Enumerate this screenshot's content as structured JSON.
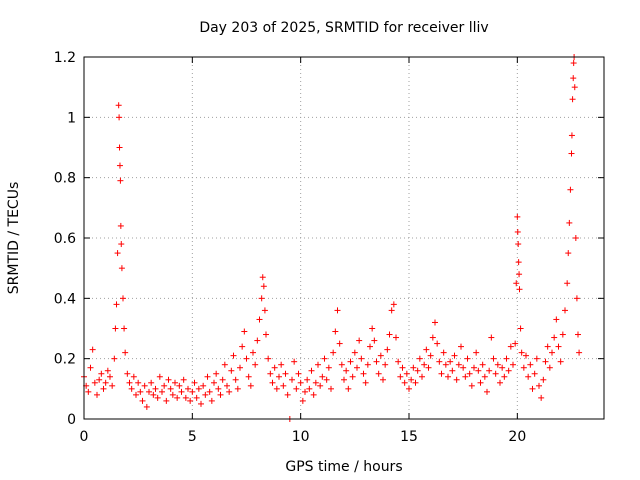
{
  "chart_data": {
    "type": "scatter",
    "title": "Day 203 of 2025, SRMTID for receiver lliv",
    "xlabel": "GPS time / hours",
    "ylabel": "SRMTID / TECUs",
    "xlim": [
      0,
      24
    ],
    "ylim": [
      0,
      1.2
    ],
    "xticks": [
      0,
      5,
      10,
      15,
      20
    ],
    "xtick_labels": [
      "0",
      "5",
      "10",
      "15",
      "20"
    ],
    "yticks": [
      0,
      0.2,
      0.4,
      0.6,
      0.8,
      1.0,
      1.2
    ],
    "ytick_labels": [
      "0",
      "0.2",
      "0.4",
      "0.6",
      "0.8",
      "1",
      "1.2"
    ],
    "grid": true,
    "marker": "plus",
    "color": "#ff0000",
    "series": [
      {
        "name": "SRMTID",
        "points": [
          [
            0.0,
            0.14
          ],
          [
            0.1,
            0.11
          ],
          [
            0.2,
            0.09
          ],
          [
            0.3,
            0.17
          ],
          [
            0.4,
            0.23
          ],
          [
            0.5,
            0.12
          ],
          [
            0.6,
            0.08
          ],
          [
            0.7,
            0.13
          ],
          [
            0.8,
            0.15
          ],
          [
            0.9,
            0.1
          ],
          [
            1.0,
            0.12
          ],
          [
            1.1,
            0.16
          ],
          [
            1.2,
            0.14
          ],
          [
            1.3,
            0.11
          ],
          [
            1.4,
            0.2
          ],
          [
            1.45,
            0.3
          ],
          [
            1.5,
            0.38
          ],
          [
            1.55,
            0.55
          ],
          [
            1.6,
            1.04
          ],
          [
            1.62,
            1.0
          ],
          [
            1.64,
            0.9
          ],
          [
            1.66,
            0.84
          ],
          [
            1.68,
            0.79
          ],
          [
            1.7,
            0.64
          ],
          [
            1.72,
            0.58
          ],
          [
            1.75,
            0.5
          ],
          [
            1.8,
            0.4
          ],
          [
            1.85,
            0.3
          ],
          [
            1.9,
            0.22
          ],
          [
            2.0,
            0.15
          ],
          [
            2.1,
            0.12
          ],
          [
            2.2,
            0.1
          ],
          [
            2.3,
            0.14
          ],
          [
            2.4,
            0.08
          ],
          [
            2.5,
            0.12
          ],
          [
            2.6,
            0.09
          ],
          [
            2.7,
            0.06
          ],
          [
            2.8,
            0.11
          ],
          [
            2.9,
            0.04
          ],
          [
            3.0,
            0.09
          ],
          [
            3.1,
            0.12
          ],
          [
            3.2,
            0.08
          ],
          [
            3.3,
            0.1
          ],
          [
            3.4,
            0.07
          ],
          [
            3.5,
            0.14
          ],
          [
            3.6,
            0.09
          ],
          [
            3.7,
            0.11
          ],
          [
            3.8,
            0.06
          ],
          [
            3.9,
            0.13
          ],
          [
            4.0,
            0.1
          ],
          [
            4.1,
            0.08
          ],
          [
            4.2,
            0.12
          ],
          [
            4.3,
            0.07
          ],
          [
            4.4,
            0.11
          ],
          [
            4.5,
            0.09
          ],
          [
            4.6,
            0.13
          ],
          [
            4.7,
            0.07
          ],
          [
            4.8,
            0.1
          ],
          [
            4.9,
            0.06
          ],
          [
            5.0,
            0.09
          ],
          [
            5.1,
            0.12
          ],
          [
            5.2,
            0.07
          ],
          [
            5.3,
            0.1
          ],
          [
            5.4,
            0.05
          ],
          [
            5.5,
            0.11
          ],
          [
            5.6,
            0.08
          ],
          [
            5.7,
            0.14
          ],
          [
            5.8,
            0.09
          ],
          [
            5.9,
            0.06
          ],
          [
            6.0,
            0.12
          ],
          [
            6.1,
            0.15
          ],
          [
            6.2,
            0.1
          ],
          [
            6.3,
            0.08
          ],
          [
            6.4,
            0.13
          ],
          [
            6.5,
            0.18
          ],
          [
            6.6,
            0.11
          ],
          [
            6.7,
            0.09
          ],
          [
            6.8,
            0.16
          ],
          [
            6.9,
            0.21
          ],
          [
            7.0,
            0.13
          ],
          [
            7.1,
            0.1
          ],
          [
            7.2,
            0.17
          ],
          [
            7.3,
            0.24
          ],
          [
            7.4,
            0.29
          ],
          [
            7.5,
            0.2
          ],
          [
            7.6,
            0.14
          ],
          [
            7.7,
            0.11
          ],
          [
            7.8,
            0.22
          ],
          [
            7.9,
            0.18
          ],
          [
            8.0,
            0.26
          ],
          [
            8.1,
            0.33
          ],
          [
            8.2,
            0.4
          ],
          [
            8.25,
            0.47
          ],
          [
            8.3,
            0.44
          ],
          [
            8.35,
            0.36
          ],
          [
            8.4,
            0.28
          ],
          [
            8.5,
            0.2
          ],
          [
            8.6,
            0.15
          ],
          [
            8.7,
            0.12
          ],
          [
            8.8,
            0.17
          ],
          [
            8.9,
            0.1
          ],
          [
            9.0,
            0.14
          ],
          [
            9.1,
            0.18
          ],
          [
            9.2,
            0.11
          ],
          [
            9.3,
            0.15
          ],
          [
            9.4,
            0.08
          ],
          [
            9.5,
            0.0
          ],
          [
            9.6,
            0.13
          ],
          [
            9.7,
            0.19
          ],
          [
            9.8,
            0.1
          ],
          [
            9.9,
            0.15
          ],
          [
            10.0,
            0.12
          ],
          [
            10.1,
            0.06
          ],
          [
            10.2,
            0.09
          ],
          [
            10.3,
            0.13
          ],
          [
            10.4,
            0.1
          ],
          [
            10.5,
            0.16
          ],
          [
            10.6,
            0.08
          ],
          [
            10.7,
            0.12
          ],
          [
            10.8,
            0.18
          ],
          [
            10.9,
            0.11
          ],
          [
            11.0,
            0.14
          ],
          [
            11.1,
            0.2
          ],
          [
            11.2,
            0.13
          ],
          [
            11.3,
            0.17
          ],
          [
            11.4,
            0.1
          ],
          [
            11.5,
            0.22
          ],
          [
            11.6,
            0.29
          ],
          [
            11.7,
            0.36
          ],
          [
            11.8,
            0.25
          ],
          [
            11.9,
            0.18
          ],
          [
            12.0,
            0.13
          ],
          [
            12.1,
            0.16
          ],
          [
            12.2,
            0.1
          ],
          [
            12.3,
            0.19
          ],
          [
            12.4,
            0.14
          ],
          [
            12.5,
            0.22
          ],
          [
            12.6,
            0.17
          ],
          [
            12.7,
            0.26
          ],
          [
            12.8,
            0.2
          ],
          [
            12.9,
            0.15
          ],
          [
            13.0,
            0.12
          ],
          [
            13.1,
            0.18
          ],
          [
            13.2,
            0.24
          ],
          [
            13.3,
            0.3
          ],
          [
            13.4,
            0.26
          ],
          [
            13.5,
            0.19
          ],
          [
            13.6,
            0.15
          ],
          [
            13.7,
            0.21
          ],
          [
            13.8,
            0.13
          ],
          [
            13.9,
            0.18
          ],
          [
            14.0,
            0.23
          ],
          [
            14.1,
            0.28
          ],
          [
            14.2,
            0.36
          ],
          [
            14.3,
            0.38
          ],
          [
            14.4,
            0.27
          ],
          [
            14.5,
            0.19
          ],
          [
            14.6,
            0.14
          ],
          [
            14.7,
            0.17
          ],
          [
            14.8,
            0.12
          ],
          [
            14.9,
            0.15
          ],
          [
            15.0,
            0.1
          ],
          [
            15.1,
            0.13
          ],
          [
            15.2,
            0.17
          ],
          [
            15.3,
            0.12
          ],
          [
            15.4,
            0.16
          ],
          [
            15.5,
            0.2
          ],
          [
            15.6,
            0.14
          ],
          [
            15.7,
            0.18
          ],
          [
            15.8,
            0.23
          ],
          [
            15.9,
            0.17
          ],
          [
            16.0,
            0.21
          ],
          [
            16.1,
            0.27
          ],
          [
            16.2,
            0.32
          ],
          [
            16.3,
            0.25
          ],
          [
            16.4,
            0.19
          ],
          [
            16.5,
            0.15
          ],
          [
            16.6,
            0.22
          ],
          [
            16.7,
            0.18
          ],
          [
            16.8,
            0.14
          ],
          [
            16.9,
            0.19
          ],
          [
            17.0,
            0.16
          ],
          [
            17.1,
            0.21
          ],
          [
            17.2,
            0.13
          ],
          [
            17.3,
            0.18
          ],
          [
            17.4,
            0.24
          ],
          [
            17.5,
            0.17
          ],
          [
            17.6,
            0.14
          ],
          [
            17.7,
            0.2
          ],
          [
            17.8,
            0.15
          ],
          [
            17.9,
            0.11
          ],
          [
            18.0,
            0.17
          ],
          [
            18.1,
            0.22
          ],
          [
            18.2,
            0.16
          ],
          [
            18.3,
            0.12
          ],
          [
            18.4,
            0.18
          ],
          [
            18.5,
            0.14
          ],
          [
            18.6,
            0.09
          ],
          [
            18.7,
            0.16
          ],
          [
            18.8,
            0.27
          ],
          [
            18.9,
            0.2
          ],
          [
            19.0,
            0.15
          ],
          [
            19.1,
            0.18
          ],
          [
            19.2,
            0.12
          ],
          [
            19.3,
            0.17
          ],
          [
            19.4,
            0.14
          ],
          [
            19.5,
            0.2
          ],
          [
            19.6,
            0.16
          ],
          [
            19.7,
            0.24
          ],
          [
            19.8,
            0.18
          ],
          [
            19.9,
            0.25
          ],
          [
            19.95,
            0.45
          ],
          [
            20.0,
            0.67
          ],
          [
            20.02,
            0.62
          ],
          [
            20.04,
            0.58
          ],
          [
            20.06,
            0.52
          ],
          [
            20.08,
            0.48
          ],
          [
            20.1,
            0.43
          ],
          [
            20.15,
            0.3
          ],
          [
            20.2,
            0.22
          ],
          [
            20.3,
            0.17
          ],
          [
            20.4,
            0.21
          ],
          [
            20.5,
            0.14
          ],
          [
            20.6,
            0.18
          ],
          [
            20.7,
            0.1
          ],
          [
            20.8,
            0.15
          ],
          [
            20.9,
            0.2
          ],
          [
            21.0,
            0.11
          ],
          [
            21.1,
            0.07
          ],
          [
            21.2,
            0.13
          ],
          [
            21.3,
            0.19
          ],
          [
            21.4,
            0.24
          ],
          [
            21.5,
            0.17
          ],
          [
            21.6,
            0.22
          ],
          [
            21.7,
            0.27
          ],
          [
            21.8,
            0.33
          ],
          [
            21.9,
            0.24
          ],
          [
            22.0,
            0.19
          ],
          [
            22.1,
            0.28
          ],
          [
            22.2,
            0.36
          ],
          [
            22.3,
            0.45
          ],
          [
            22.35,
            0.55
          ],
          [
            22.4,
            0.65
          ],
          [
            22.45,
            0.76
          ],
          [
            22.5,
            0.88
          ],
          [
            22.52,
            0.94
          ],
          [
            22.55,
            1.06
          ],
          [
            22.58,
            1.13
          ],
          [
            22.6,
            1.18
          ],
          [
            22.62,
            1.2
          ],
          [
            22.65,
            1.1
          ],
          [
            22.7,
            0.6
          ],
          [
            22.75,
            0.4
          ],
          [
            22.8,
            0.28
          ],
          [
            22.85,
            0.22
          ]
        ]
      }
    ]
  }
}
